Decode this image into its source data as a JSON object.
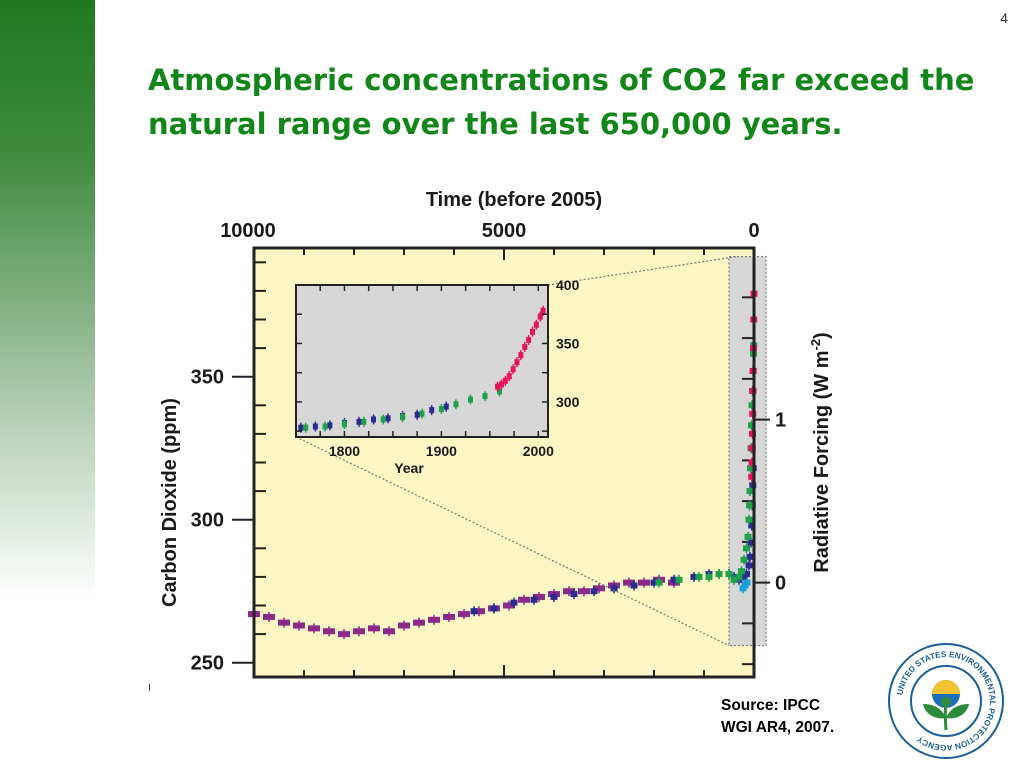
{
  "slide": {
    "number": "4",
    "title": "Atmospheric concentrations of CO2 far exceed the natural range over the last 650,000 years.",
    "source_lines": [
      "Source: IPCC",
      "WGI AR4, 2007."
    ]
  },
  "logo": {
    "ring_text": "UNITED STATES ENVIRONMENTAL PROTECTION AGENCY",
    "colors": {
      "ring": "#1a5e9a",
      "plant": "#2e8a3d",
      "sun": "#f2c230",
      "sky": "#1b6fb6"
    }
  },
  "colors": {
    "title": "#13861a",
    "plot_bg": "#fbf6c4",
    "shaded": "#d7d7d7",
    "series_a": "#8b2a8b",
    "series_b": "#2b2b8f",
    "series_c": "#1fa04a",
    "series_d": "#1aa0d8",
    "series_e": "#e8145a"
  },
  "chart_data": [
    {
      "type": "scatter",
      "top_axis_title": "Time (before 2005)",
      "top_ticks": [
        10000,
        5000,
        0
      ],
      "xlim": [
        10000,
        0
      ],
      "ylabel": "Carbon Dioxide (ppm)",
      "y_ticks": [
        250,
        300,
        350
      ],
      "ylim": [
        245,
        395
      ],
      "right_label": "Radiative Forcing (W m",
      "right_label_sup": "-2",
      "right_ticks": [
        {
          "label": "0",
          "ppm": 278
        },
        {
          "label": "1",
          "ppm": 335
        }
      ],
      "shaded_region": [
        500,
        0
      ],
      "series": [
        {
          "color_key": "series_a",
          "points": [
            [
              10000,
              267
            ],
            [
              9700,
              266
            ],
            [
              9400,
              264
            ],
            [
              9100,
              263
            ],
            [
              8800,
              262
            ],
            [
              8500,
              261
            ],
            [
              8200,
              260
            ],
            [
              7900,
              261
            ],
            [
              7600,
              262
            ],
            [
              7300,
              261
            ],
            [
              7000,
              263
            ],
            [
              6700,
              264
            ],
            [
              6400,
              265
            ],
            [
              6100,
              266
            ],
            [
              5800,
              267
            ],
            [
              5500,
              268
            ],
            [
              5200,
              269
            ],
            [
              4900,
              270
            ],
            [
              4600,
              272
            ],
            [
              4300,
              273
            ],
            [
              4000,
              274
            ],
            [
              3700,
              275
            ],
            [
              3400,
              275
            ],
            [
              3100,
              276
            ],
            [
              2800,
              277
            ],
            [
              2500,
              278
            ],
            [
              2200,
              278
            ],
            [
              1900,
              279
            ],
            [
              1600,
              278
            ]
          ]
        },
        {
          "color_key": "series_b",
          "points": [
            [
              5600,
              268
            ],
            [
              5200,
              269
            ],
            [
              4800,
              271
            ],
            [
              4400,
              272
            ],
            [
              4000,
              273
            ],
            [
              3600,
              274
            ],
            [
              3200,
              275
            ],
            [
              2800,
              276
            ],
            [
              2400,
              277
            ],
            [
              2000,
              278
            ],
            [
              1600,
              279
            ],
            [
              1200,
              280
            ],
            [
              900,
              281
            ],
            [
              700,
              281
            ],
            [
              500,
              281
            ],
            [
              400,
              280
            ],
            [
              300,
              279
            ],
            [
              200,
              280
            ],
            [
              150,
              281
            ],
            [
              100,
              284
            ],
            [
              80,
              287
            ],
            [
              60,
              292
            ],
            [
              45,
              298
            ],
            [
              35,
              305
            ],
            [
              25,
              312
            ],
            [
              15,
              318
            ]
          ]
        },
        {
          "color_key": "series_c",
          "points": [
            [
              1900,
              278
            ],
            [
              1500,
              279
            ],
            [
              1100,
              280
            ],
            [
              900,
              280
            ],
            [
              700,
              281
            ],
            [
              500,
              281
            ],
            [
              400,
              279
            ],
            [
              300,
              280
            ],
            [
              250,
              282
            ],
            [
              200,
              286
            ],
            [
              150,
              290
            ],
            [
              120,
              294
            ],
            [
              100,
              300
            ],
            [
              90,
              305
            ],
            [
              80,
              310
            ],
            [
              70,
              318
            ],
            [
              60,
              325
            ],
            [
              50,
              333
            ],
            [
              40,
              340
            ],
            [
              30,
              345
            ],
            [
              20,
              352
            ],
            [
              10,
              358
            ],
            [
              5,
              361
            ]
          ]
        },
        {
          "color_key": "series_d",
          "points": [
            [
              220,
              276
            ],
            [
              180,
              277
            ],
            [
              140,
              278
            ]
          ]
        },
        {
          "color_key": "series_e",
          "points": [
            [
              45,
              315
            ],
            [
              40,
              320
            ],
            [
              35,
              325
            ],
            [
              30,
              330
            ],
            [
              25,
              337
            ],
            [
              20,
              345
            ],
            [
              15,
              352
            ],
            [
              10,
              360
            ],
            [
              5,
              370
            ],
            [
              0,
              379
            ]
          ]
        }
      ]
    },
    {
      "type": "scatter",
      "xlabel": "Year",
      "x_ticks": [
        1800,
        1900,
        2000
      ],
      "xlim": [
        1750,
        2010
      ],
      "y_ticks": [
        300,
        350,
        400
      ],
      "ylim": [
        270,
        400
      ],
      "series": [
        {
          "color_key": "series_b",
          "points": [
            [
              1755,
              278
            ],
            [
              1770,
              279
            ],
            [
              1785,
              280
            ],
            [
              1800,
              282
            ],
            [
              1815,
              283
            ],
            [
              1830,
              285
            ],
            [
              1845,
              286
            ],
            [
              1860,
              288
            ],
            [
              1875,
              289
            ],
            [
              1890,
              293
            ],
            [
              1905,
              296
            ]
          ]
        },
        {
          "color_key": "series_c",
          "points": [
            [
              1760,
              278
            ],
            [
              1780,
              279
            ],
            [
              1800,
              281
            ],
            [
              1820,
              283
            ],
            [
              1840,
              285
            ],
            [
              1860,
              287
            ],
            [
              1880,
              290
            ],
            [
              1900,
              294
            ],
            [
              1915,
              298
            ],
            [
              1930,
              302
            ],
            [
              1945,
              305
            ],
            [
              1960,
              309
            ]
          ]
        },
        {
          "color_key": "series_e",
          "points": [
            [
              1958,
              313
            ],
            [
              1962,
              315
            ],
            [
              1966,
              318
            ],
            [
              1970,
              322
            ],
            [
              1974,
              328
            ],
            [
              1978,
              334
            ],
            [
              1982,
              340
            ],
            [
              1986,
              347
            ],
            [
              1990,
              353
            ],
            [
              1994,
              360
            ],
            [
              1998,
              366
            ],
            [
              2002,
              373
            ],
            [
              2005,
              378
            ]
          ]
        }
      ]
    }
  ]
}
